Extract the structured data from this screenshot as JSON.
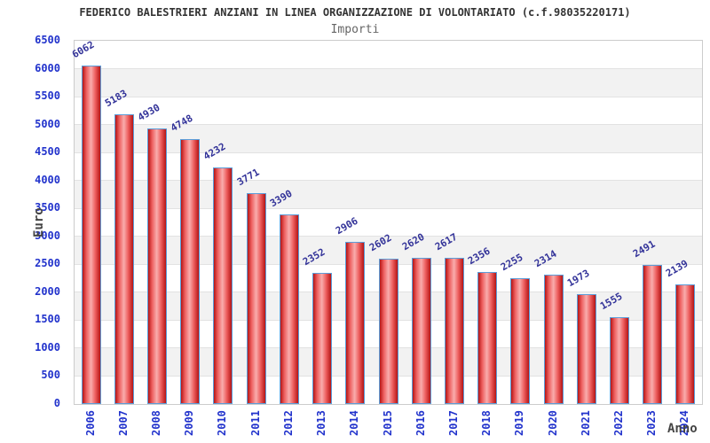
{
  "chart_data": {
    "type": "bar",
    "title": "FEDERICO BALESTRIERI ANZIANI IN LINEA ORGANIZZAZIONE DI VOLONTARIATO (c.f.98035220171)",
    "subtitle": "Importi",
    "xlabel": "Anno",
    "ylabel": "Euro",
    "categories": [
      "2006",
      "2007",
      "2008",
      "2009",
      "2010",
      "2011",
      "2012",
      "2013",
      "2014",
      "2015",
      "2016",
      "2017",
      "2018",
      "2019",
      "2020",
      "2021",
      "2022",
      "2023",
      "2024"
    ],
    "values": [
      6062,
      5183,
      4930,
      4748,
      4232,
      3771,
      3390,
      2352,
      2906,
      2602,
      2620,
      2617,
      2356,
      2255,
      2314,
      1973,
      1555,
      2491,
      2139
    ],
    "ylim": [
      0,
      6500
    ],
    "ytick_step": 500,
    "grid": true,
    "legend_position": "none",
    "alternating_bands": true
  },
  "colors": {
    "title": "#333333",
    "subtitle": "#666666",
    "axis_tick_label": "#2233cc",
    "value_label": "#333399",
    "axis_title": "#444444",
    "bar_edge": "#b51515",
    "bar_mid": "#ee5f5f",
    "bar_center": "#f9adad",
    "bar_border": "#5b9dd9",
    "band_light": "#ffffff",
    "band_dark": "#f2f2f2",
    "gridline": "#e2e2e2",
    "plot_border": "#cccccc"
  }
}
